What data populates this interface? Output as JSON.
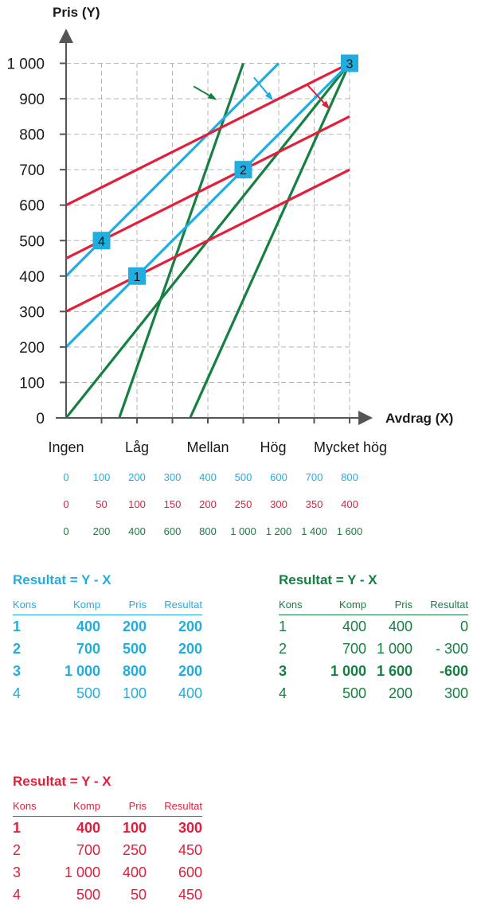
{
  "chart_data": {
    "type": "line",
    "ylabel": "Pris (Y)",
    "xlabel": "Avdrag (X)",
    "ylim": [
      0,
      1000
    ],
    "y_ticks": [
      "0",
      "100",
      "200",
      "300",
      "400",
      "500",
      "600",
      "700",
      "800",
      "900",
      "1 000"
    ],
    "y_tick_values": [
      0,
      100,
      200,
      300,
      400,
      500,
      600,
      700,
      800,
      900,
      1000
    ],
    "x_categories": [
      "Ingen",
      "Låg",
      "Mellan",
      "Hög",
      "Mycket hög"
    ],
    "x_scales": [
      {
        "color": "#20aee0",
        "ticks": [
          "0",
          "100",
          "200",
          "300",
          "400",
          "500",
          "600",
          "700",
          "800"
        ]
      },
      {
        "color": "#e31e3b",
        "ticks": [
          "0",
          "50",
          "100",
          "150",
          "200",
          "250",
          "300",
          "350",
          "400"
        ]
      },
      {
        "color": "#168042",
        "ticks": [
          "0",
          "200",
          "400",
          "600",
          "800",
          "1 000",
          "1 200",
          "1 400",
          "1 600"
        ]
      }
    ],
    "grid": true,
    "series": [
      {
        "color": "#168042",
        "x": [
          0,
          8
        ],
        "y": [
          0,
          1000
        ]
      },
      {
        "color": "#168042",
        "x": [
          1.5,
          5
        ],
        "y": [
          0,
          1000
        ]
      },
      {
        "color": "#168042",
        "x": [
          3.5,
          8
        ],
        "y": [
          0,
          1000
        ]
      },
      {
        "color": "#20aee0",
        "x": [
          0,
          6
        ],
        "y": [
          400,
          1000
        ]
      },
      {
        "color": "#20aee0",
        "x": [
          0,
          8
        ],
        "y": [
          200,
          1000
        ]
      },
      {
        "color": "#e31e3b",
        "x": [
          0,
          8
        ],
        "y": [
          600,
          1000
        ]
      },
      {
        "color": "#e31e3b",
        "x": [
          0,
          8
        ],
        "y": [
          450,
          850
        ]
      },
      {
        "color": "#e31e3b",
        "x": [
          0,
          8
        ],
        "y": [
          300,
          700
        ]
      }
    ],
    "markers": [
      {
        "label": "1",
        "x": 2,
        "y": 400
      },
      {
        "label": "2",
        "x": 5,
        "y": 700
      },
      {
        "label": "3",
        "x": 8,
        "y": 1000
      },
      {
        "label": "4",
        "x": 1,
        "y": 500
      }
    ],
    "shift_arrows": [
      {
        "color": "#168042",
        "from": [
          3.6,
          935
        ],
        "to": [
          4.2,
          900
        ]
      },
      {
        "color": "#20aee0",
        "from": [
          5.3,
          960
        ],
        "to": [
          5.8,
          900
        ]
      },
      {
        "color": "#e31e3b",
        "from": [
          6.8,
          940
        ],
        "to": [
          7.4,
          875
        ]
      }
    ]
  },
  "tables": {
    "blue": {
      "title": "Resultat = Y - X",
      "header": [
        "Kons",
        "Komp",
        "Pris",
        "Resultat"
      ],
      "rows": [
        {
          "cells": [
            "1",
            "400",
            "200",
            "200"
          ],
          "bold": true
        },
        {
          "cells": [
            "2",
            "700",
            "500",
            "200"
          ],
          "bold": true
        },
        {
          "cells": [
            "3",
            "1 000",
            "800",
            "200"
          ],
          "bold": true
        },
        {
          "cells": [
            "4",
            "500",
            "100",
            "400"
          ],
          "bold": false
        }
      ]
    },
    "green": {
      "title": "Resultat = Y - X",
      "header": [
        "Kons",
        "Komp",
        "Pris",
        "Resultat"
      ],
      "rows": [
        {
          "cells": [
            "1",
            "400",
            "400",
            "0"
          ],
          "bold": false
        },
        {
          "cells": [
            "2",
            "700",
            "1 000",
            "- 300"
          ],
          "bold": false
        },
        {
          "cells": [
            "3",
            "1 000",
            "1 600",
            "-600"
          ],
          "bold": true
        },
        {
          "cells": [
            "4",
            "500",
            "200",
            "300"
          ],
          "bold": false
        }
      ]
    },
    "red": {
      "title": "Resultat = Y - X",
      "header": [
        "Kons",
        "Komp",
        "Pris",
        "Resultat"
      ],
      "rows": [
        {
          "cells": [
            "1",
            "400",
            "100",
            "300"
          ],
          "bold": true
        },
        {
          "cells": [
            "2",
            "700",
            "250",
            "450"
          ],
          "bold": false
        },
        {
          "cells": [
            "3",
            "1 000",
            "400",
            "600"
          ],
          "bold": false
        },
        {
          "cells": [
            "4",
            "500",
            "50",
            "450"
          ],
          "bold": false
        }
      ]
    }
  }
}
